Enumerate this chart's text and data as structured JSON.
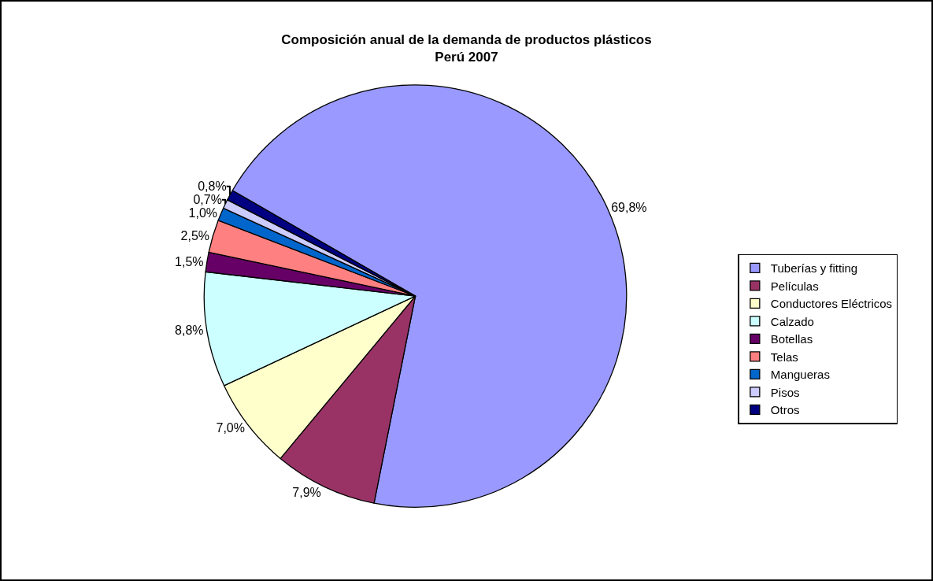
{
  "chart_data": {
    "type": "pie",
    "title": "Composición anual de la demanda de productos plásticos\nPerú 2007",
    "categories": [
      "Tuberías y fitting",
      "Películas",
      "Conductores Eléctricos",
      "Calzado",
      "Botellas",
      "Telas",
      "Mangueras",
      "Pisos",
      "Otros"
    ],
    "values": [
      69.8,
      7.9,
      7.0,
      8.8,
      1.5,
      2.5,
      1.0,
      0.7,
      0.8
    ],
    "value_labels": [
      "69,8%",
      "7,9%",
      "7,0%",
      "8,8%",
      "1,5%",
      "2,5%",
      "1,0%",
      "0,7%",
      "0,8%"
    ],
    "colors": [
      "#9999ff",
      "#993366",
      "#ffffcc",
      "#ccffff",
      "#660066",
      "#ff8080",
      "#0066cc",
      "#ccccff",
      "#000080"
    ],
    "legend": "right"
  }
}
